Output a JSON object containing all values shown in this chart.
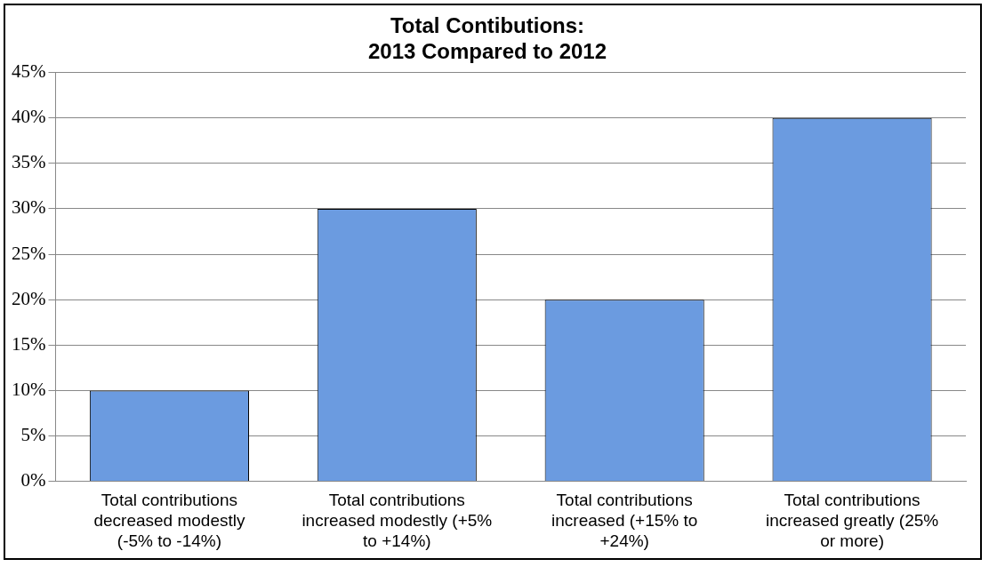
{
  "chart_data": {
    "type": "bar",
    "title": "Total Contibutions:\n2013 Compared to 2012",
    "categories": [
      "Total contributions decreased modestly (-5% to -14%)",
      "Total contributions increased modestly (+5% to +14%)",
      "Total contributions increased (+15% to +24%)",
      "Total contributions increased greatly (25% or more)"
    ],
    "values": [
      10,
      30,
      20,
      40
    ],
    "color": "#6b9be0",
    "ylim": [
      0,
      45
    ],
    "yticks": [
      {
        "value": 0,
        "label": "0%"
      },
      {
        "value": 5,
        "label": "5%"
      },
      {
        "value": 10,
        "label": "10%"
      },
      {
        "value": 15,
        "label": "15%"
      },
      {
        "value": 20,
        "label": "20%"
      },
      {
        "value": 25,
        "label": "25%"
      },
      {
        "value": 30,
        "label": "30%"
      },
      {
        "value": 35,
        "label": "35%"
      },
      {
        "value": 40,
        "label": "40%"
      },
      {
        "value": 45,
        "label": "45%"
      }
    ],
    "grid": "y",
    "legend": false
  }
}
